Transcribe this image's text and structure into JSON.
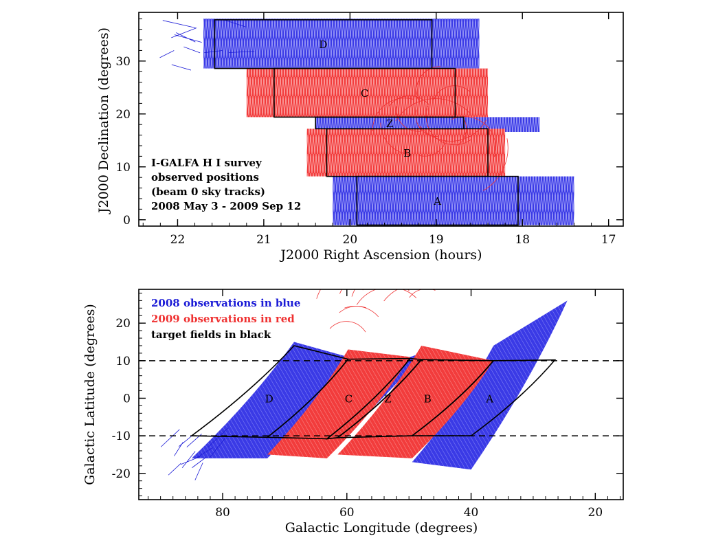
{
  "chart_data": [
    {
      "type": "area",
      "xlabel": "J2000 Right Ascension (hours)",
      "ylabel": "J2000 Declination (degrees)",
      "xlim": [
        22.45,
        16.83
      ],
      "ylim": [
        -1.2,
        39.2
      ],
      "xticks": [
        22,
        21,
        20,
        19,
        18,
        17
      ],
      "yticks": [
        0,
        10,
        20,
        30
      ],
      "annotation_lines": [
        "I-GALFA H I survey",
        "observed positions",
        "(beam 0 sky tracks)",
        "2008 May 3 - 2009 Sep 12"
      ],
      "fields": [
        {
          "name": "D",
          "ra_min": 19.05,
          "ra_max": 21.57,
          "dec_min": 28.6,
          "dec_max": 37.8
        },
        {
          "name": "C",
          "ra_min": 18.78,
          "ra_max": 20.88,
          "dec_min": 19.4,
          "dec_max": 28.6
        },
        {
          "name": "Z",
          "ra_min": 18.68,
          "ra_max": 20.4,
          "dec_min": 17.2,
          "dec_max": 19.4
        },
        {
          "name": "B",
          "ra_min": 18.4,
          "ra_max": 20.27,
          "dec_min": 8.2,
          "dec_max": 17.2
        },
        {
          "name": "A",
          "ra_min": 18.05,
          "ra_max": 19.92,
          "dec_min": -1.0,
          "dec_max": 8.2
        }
      ],
      "series": [
        {
          "name": "2008 observations",
          "color": "#1a1ad6",
          "regions": [
            {
              "ra_min": 18.5,
              "ra_max": 21.7,
              "dec_min": 28.6,
              "dec_max": 38.0
            },
            {
              "ra_min": 17.8,
              "ra_max": 20.4,
              "dec_min": 16.6,
              "dec_max": 19.4
            },
            {
              "ra_min": 17.4,
              "ra_max": 20.2,
              "dec_min": -1.0,
              "dec_max": 8.2
            }
          ]
        },
        {
          "name": "2009 observations",
          "color": "#ef3030",
          "regions": [
            {
              "ra_min": 18.4,
              "ra_max": 21.2,
              "dec_min": 19.4,
              "dec_max": 28.6
            },
            {
              "ra_min": 18.2,
              "ra_max": 20.5,
              "dec_min": 8.2,
              "dec_max": 17.2
            }
          ]
        }
      ]
    },
    {
      "type": "area",
      "xlabel": "Galactic Longitude (degrees)",
      "ylabel": "Galactic Latitude (degrees)",
      "xlim": [
        93.5,
        15.5
      ],
      "ylim": [
        -27,
        29
      ],
      "xticks": [
        80,
        60,
        40,
        20
      ],
      "yticks": [
        -20,
        -10,
        0,
        10,
        20
      ],
      "reference_lines_b": [
        -10,
        10
      ],
      "legend": [
        {
          "label": "2008 observations in blue",
          "color": "#1a1ad6"
        },
        {
          "label": "2009 observations in red",
          "color": "#ef3030"
        },
        {
          "label": "target fields in black",
          "color": "#000000"
        }
      ],
      "legend_position": "top-left",
      "fields": [
        {
          "name": "D",
          "label_l": 72.5,
          "label_b": 0,
          "corners": [
            [
              68.5,
              14
            ],
            [
              59.8,
              10.4
            ],
            [
              72.8,
              -10.4
            ],
            [
              85.0,
              -10
            ]
          ]
        },
        {
          "name": "C",
          "label_l": 59.7,
          "label_b": 0,
          "corners": [
            [
              59.8,
              10.4
            ],
            [
              49.8,
              10.6
            ],
            [
              63.2,
              -10.8
            ],
            [
              72.8,
              -10.4
            ]
          ]
        },
        {
          "name": "Z",
          "label_l": 53.4,
          "label_b": 0,
          "corners": [
            [
              49.8,
              10.6
            ],
            [
              48.0,
              10.3
            ],
            [
              61.5,
              -10.5
            ],
            [
              63.2,
              -10.8
            ]
          ]
        },
        {
          "name": "B",
          "label_l": 47.0,
          "label_b": 0,
          "corners": [
            [
              48.0,
              10.3
            ],
            [
              36.4,
              10.0
            ],
            [
              49.5,
              -10.0
            ],
            [
              61.5,
              -10.5
            ]
          ]
        },
        {
          "name": "A",
          "label_l": 37.0,
          "label_b": 0,
          "corners": [
            [
              36.4,
              10.0
            ],
            [
              26.5,
              10.2
            ],
            [
              40.0,
              -10.0
            ],
            [
              49.5,
              -10.0
            ]
          ]
        }
      ],
      "series": [
        {
          "name": "2008 observations",
          "color": "#1a1ad6",
          "regions": [
            {
              "name": "D",
              "corners": [
                [
                  68.5,
                  15
                ],
                [
                  59.8,
                  11
                ],
                [
                  72.8,
                  -16
                ],
                [
                  85.0,
                  -16
                ]
              ]
            },
            {
              "name": "Z",
              "corners": [
                [
                  49.8,
                  11
                ],
                [
                  48.0,
                  12
                ],
                [
                  61.5,
                  -11
                ],
                [
                  63.2,
                  -11
                ]
              ]
            },
            {
              "name": "A",
              "corners": [
                [
                  36.4,
                  14
                ],
                [
                  24.5,
                  26
                ],
                [
                  40.0,
                  -19
                ],
                [
                  49.5,
                  -17
                ]
              ]
            }
          ]
        },
        {
          "name": "2009 observations",
          "color": "#ef3030",
          "regions": [
            {
              "name": "C",
              "corners": [
                [
                  59.8,
                  13
                ],
                [
                  49.8,
                  11
                ],
                [
                  63.2,
                  -16
                ],
                [
                  72.8,
                  -15
                ]
              ]
            },
            {
              "name": "B",
              "corners": [
                [
                  48.0,
                  14
                ],
                [
                  36.4,
                  10
                ],
                [
                  49.5,
                  -16
                ],
                [
                  61.5,
                  -15
                ]
              ]
            }
          ]
        }
      ]
    }
  ]
}
